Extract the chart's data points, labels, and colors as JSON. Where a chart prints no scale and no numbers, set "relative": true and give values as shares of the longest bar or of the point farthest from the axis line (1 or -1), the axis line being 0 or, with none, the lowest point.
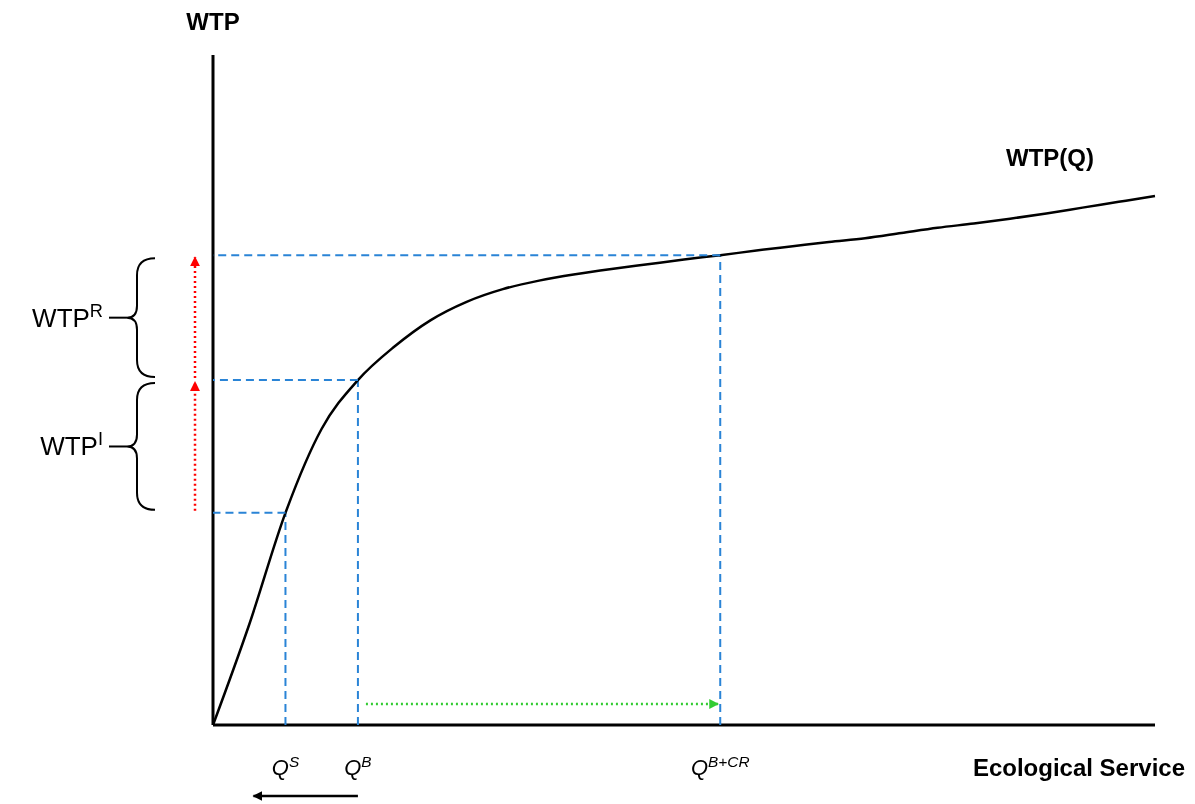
{
  "chart_data": {
    "type": "line",
    "relative": true,
    "xlabel": "Ecological Service",
    "categories": [
      null,
      null,
      "Q$^{S}$",
      null,
      "Q$^{B}$",
      null,
      null,
      null,
      null,
      null,
      null,
      null,
      null,
      null,
      "Q$^{B+CR}$",
      null,
      null,
      null,
      null,
      null,
      null,
      null,
      null,
      null,
      null,
      null,
      null
    ],
    "series": [
      {
        "name": "WTP(Q)",
        "color": "#000000",
        "line_style": "solid",
        "values": [
          0,
          0.19,
          0.401,
          0.56,
          0.652,
          0.715,
          0.765,
          0.8,
          0.824,
          0.84,
          0.852,
          0.862,
          0.871,
          0.88,
          0.888,
          0.897,
          0.905,
          0.913,
          0.92,
          0.93,
          0.94,
          0.948,
          0.957,
          0.967,
          0.978,
          0.989,
          1
        ]
      },
      {
        "color": "#2a84d6",
        "line_style": "dashed",
        "values": [
          0.401,
          0.401,
          0.401,
          null,
          null,
          null,
          null,
          null,
          null,
          null,
          null,
          null,
          null,
          null,
          null,
          null,
          null,
          null,
          null,
          null,
          null,
          null,
          null,
          null,
          null,
          null,
          null
        ]
      },
      {
        "color": "#2a84d6",
        "line_style": "dashed",
        "values": [
          0.652,
          0.652,
          0.652,
          0.652,
          0.652,
          null,
          null,
          null,
          null,
          null,
          null,
          null,
          null,
          null,
          null,
          null,
          null,
          null,
          null,
          null,
          null,
          null,
          null,
          null,
          null,
          null,
          null
        ]
      },
      {
        "color": "#2a84d6",
        "line_style": "dashed",
        "values": [
          0.888,
          0.888,
          0.888,
          0.888,
          0.888,
          0.888,
          0.888,
          0.888,
          0.888,
          0.888,
          0.888,
          0.888,
          0.888,
          0.888,
          0.888,
          null,
          null,
          null,
          null,
          null,
          null,
          null,
          null,
          null,
          null,
          null,
          null
        ]
      }
    ],
    "ref_lines": [
      {
        "axis": "x",
        "value": "Q$^{S}$",
        "color": "#2a84d6",
        "line_style": "dashed"
      },
      {
        "axis": "x",
        "value": "Q$^{B}$",
        "color": "#2a84d6",
        "line_style": "dashed"
      },
      {
        "axis": "x",
        "value": "Q$^{B+CR}$",
        "color": "#2a84d6",
        "line_style": "dashed"
      }
    ],
    "annotations": [
      "WTP$^{R}$",
      "WTP$^{I}$",
      "WTP"
    ]
  }
}
